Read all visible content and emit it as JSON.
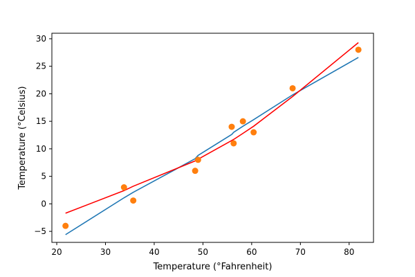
{
  "chart_data": {
    "type": "scatter",
    "title": "",
    "xlabel": "Temperature (°Fahrenheit)",
    "ylabel": "Temperature (°Celsius)",
    "xlim": [
      19.0,
      85.0
    ],
    "ylim": [
      -7.0,
      31.0
    ],
    "xticks": [
      20,
      30,
      40,
      50,
      60,
      70,
      80
    ],
    "yticks": [
      -5,
      0,
      5,
      10,
      15,
      20,
      25,
      30
    ],
    "grid": false,
    "legend": "none",
    "series": [
      {
        "kind": "line",
        "color": "#1f77b4",
        "x": [
          21.8,
          33.8,
          35.7,
          48.4,
          49.0,
          55.9,
          56.3,
          58.2,
          60.4,
          68.4,
          81.9
        ],
        "y": [
          -5.6,
          1.1,
          2.1,
          8.2,
          8.8,
          12.6,
          13.0,
          14.1,
          15.3,
          19.8,
          26.6
        ]
      },
      {
        "kind": "line",
        "color": "#ff0000",
        "x": [
          21.8,
          33.8,
          35.7,
          48.4,
          49.0,
          55.9,
          56.3,
          58.2,
          60.4,
          68.4,
          81.9
        ],
        "y": [
          -1.7,
          2.4,
          3.2,
          7.8,
          8.1,
          11.5,
          11.7,
          12.8,
          14.1,
          19.5,
          29.3
        ]
      },
      {
        "kind": "scatter",
        "color": "#ff7f0e",
        "x": [
          21.8,
          33.8,
          35.7,
          48.4,
          49.0,
          55.9,
          56.3,
          58.2,
          60.4,
          68.4,
          81.9
        ],
        "y": [
          -4.0,
          3.0,
          0.6,
          6.0,
          8.0,
          14.0,
          11.0,
          15.0,
          13.0,
          21.0,
          28.0
        ]
      }
    ]
  }
}
